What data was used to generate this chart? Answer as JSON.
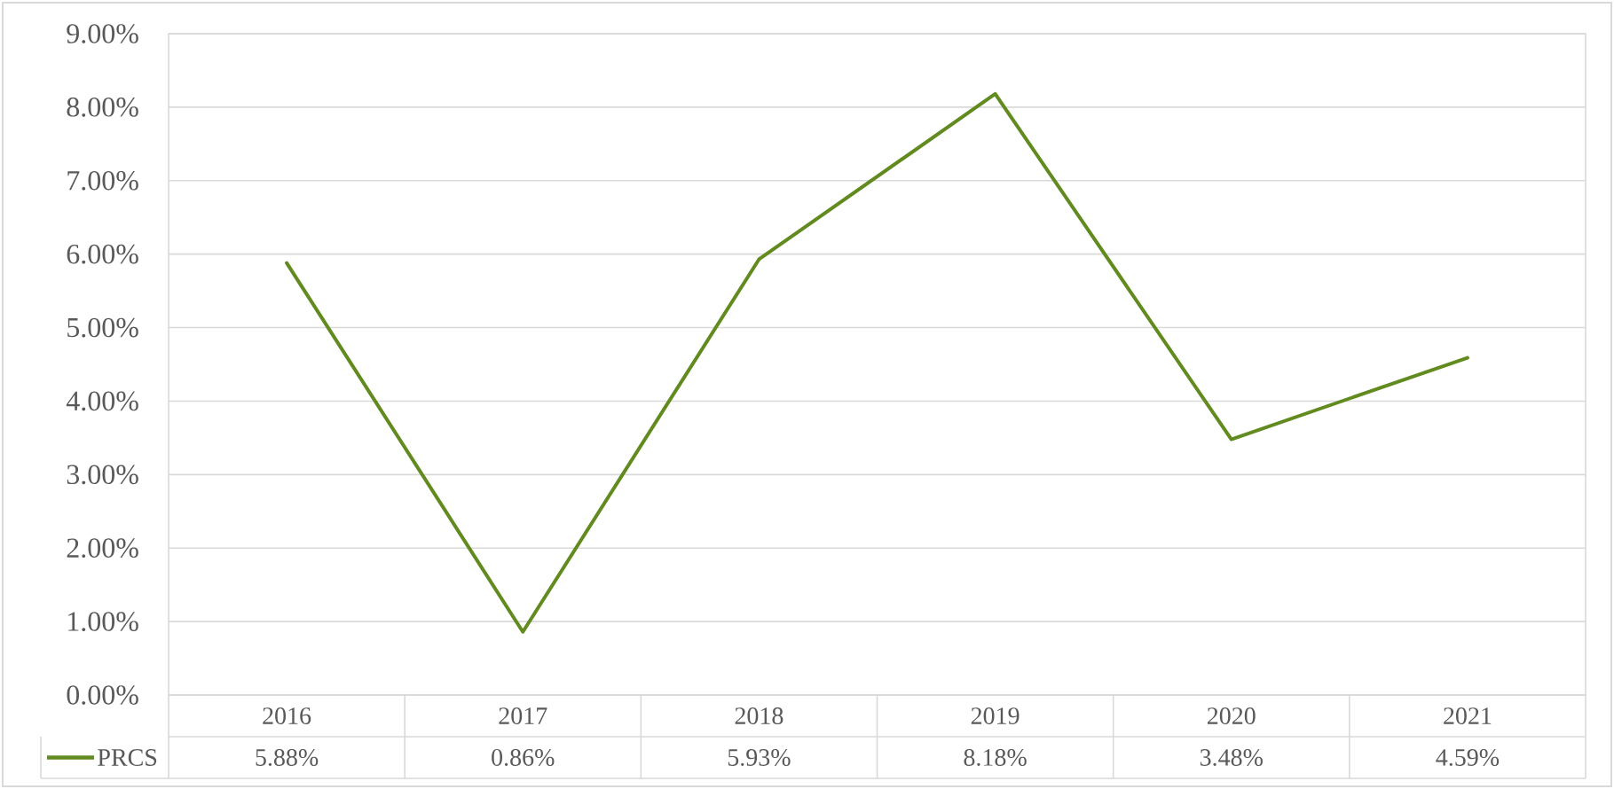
{
  "chart_data": {
    "type": "line",
    "categories": [
      "2016",
      "2017",
      "2018",
      "2019",
      "2020",
      "2021"
    ],
    "series": [
      {
        "name": "PRCS",
        "color": "#628b1f",
        "values": [
          5.88,
          0.86,
          5.93,
          8.18,
          3.48,
          4.59
        ],
        "value_labels": [
          "5.88%",
          "0.86%",
          "5.93%",
          "8.18%",
          "3.48%",
          "4.59%"
        ]
      }
    ],
    "ylim": [
      0,
      9
    ],
    "yticks": [
      {
        "value": 0,
        "label": "0.00%"
      },
      {
        "value": 1,
        "label": "1.00%"
      },
      {
        "value": 2,
        "label": "2.00%"
      },
      {
        "value": 3,
        "label": "3.00%"
      },
      {
        "value": 4,
        "label": "4.00%"
      },
      {
        "value": 5,
        "label": "5.00%"
      },
      {
        "value": 6,
        "label": "6.00%"
      },
      {
        "value": 7,
        "label": "7.00%"
      },
      {
        "value": 8,
        "label": "8.00%"
      },
      {
        "value": 9,
        "label": "9.00%"
      }
    ],
    "grid": "y",
    "legend": "bottom"
  }
}
